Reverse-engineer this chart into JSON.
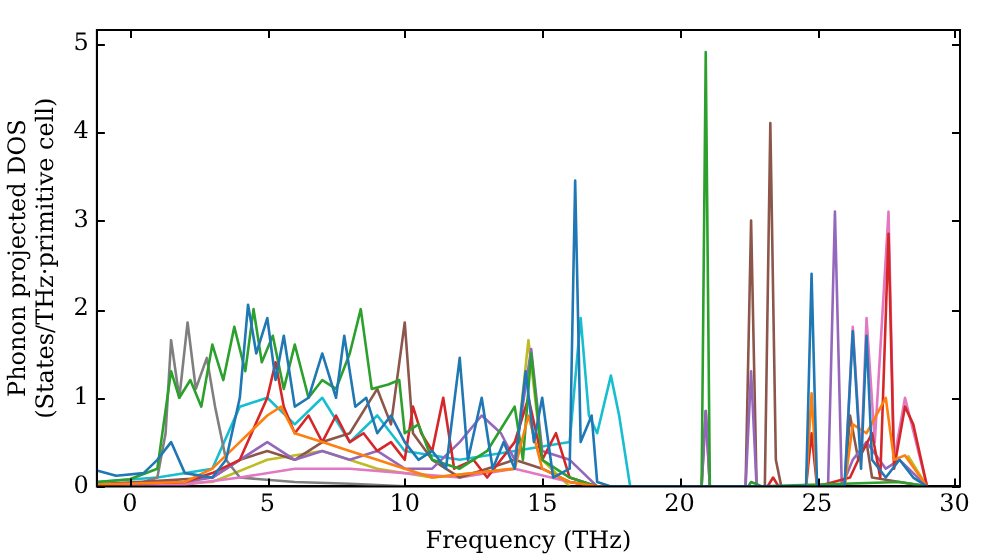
{
  "chart_data": {
    "type": "line",
    "xlabel": "Frequency (THz)",
    "ylabel": "Phonon projected DOS\n(States/THz·primitive cell)",
    "xlim": [
      -1.2,
      30.2
    ],
    "ylim": [
      0,
      5.15
    ],
    "xticks": [
      0,
      5,
      10,
      15,
      20,
      25,
      30
    ],
    "yticks": [
      0,
      1,
      2,
      3,
      4,
      5
    ],
    "grid": false,
    "legend": false,
    "marker": "none",
    "line_style": "solid",
    "series": [
      {
        "color": "#1f77b4",
        "x": [
          -1.2,
          -0.5,
          0.5,
          1,
          1.5,
          2,
          3,
          3.5,
          4,
          4.3,
          4.6,
          5,
          5.3,
          5.6,
          6,
          6.5,
          7,
          7.5,
          7.8,
          8.2,
          8.6,
          9,
          9.5,
          10,
          10.5,
          11,
          11.5,
          12,
          12.3,
          12.8,
          13.2,
          13.6,
          14,
          14.4,
          14.7,
          15,
          15.4,
          16,
          16.2,
          16.4,
          16.8,
          17,
          17.5,
          24.6,
          24.8,
          25,
          26,
          26.3,
          26.6,
          26.8,
          27,
          27.5,
          28,
          28.5,
          29
        ],
        "values": [
          0.18,
          0.12,
          0.15,
          0.3,
          0.5,
          0.15,
          0.1,
          0.3,
          1.0,
          2.05,
          1.5,
          1.9,
          1.2,
          1.7,
          0.9,
          1.0,
          1.5,
          1.0,
          1.7,
          0.9,
          1.0,
          0.6,
          0.8,
          0.5,
          0.3,
          0.4,
          0.2,
          1.45,
          0.3,
          1.0,
          0.2,
          0.5,
          0.2,
          1.3,
          0.5,
          1.0,
          0.1,
          0.2,
          3.45,
          0.5,
          0.8,
          0.05,
          0,
          0,
          2.4,
          0,
          0,
          1.75,
          0.2,
          1.7,
          0.3,
          0.1,
          0.3,
          0.1,
          0
        ]
      },
      {
        "color": "#ff7f0e",
        "x": [
          -1.2,
          2,
          3,
          4,
          5,
          5.5,
          6,
          7,
          8,
          9,
          10,
          11,
          14,
          14.5,
          15,
          16,
          17,
          24.6,
          24.8,
          25,
          26,
          26.3,
          26.8,
          27.5,
          27.8,
          28.2,
          29
        ],
        "values": [
          0.02,
          0.05,
          0.2,
          0.5,
          0.8,
          0.9,
          0.6,
          0.5,
          0.4,
          0.3,
          0.2,
          0.1,
          0.2,
          0.8,
          0.2,
          0.05,
          0,
          0,
          1.05,
          0,
          0,
          0.7,
          0.6,
          1.0,
          0.3,
          0.35,
          0
        ]
      },
      {
        "color": "#2ca02c",
        "x": [
          -1.2,
          0,
          1,
          1.5,
          1.8,
          2.2,
          2.6,
          3,
          3.4,
          3.8,
          4.2,
          4.5,
          4.8,
          5.2,
          5.6,
          6,
          6.5,
          7,
          7.5,
          8,
          8.4,
          8.8,
          9.4,
          9.8,
          10,
          10.5,
          11,
          12,
          13,
          14,
          14.3,
          14.6,
          15,
          16,
          17,
          20.8,
          20.95,
          21.1,
          22.5,
          22.6,
          23,
          28,
          29
        ],
        "values": [
          0.05,
          0.08,
          0.2,
          1.3,
          1.0,
          1.2,
          0.9,
          1.6,
          1.2,
          1.8,
          1.3,
          2.0,
          1.4,
          1.7,
          1.1,
          1.6,
          1.0,
          1.2,
          1.1,
          1.5,
          2.0,
          1.1,
          1.15,
          1.2,
          0.6,
          0.7,
          0.3,
          0.2,
          0.4,
          0.9,
          0.3,
          1.5,
          0.3,
          0.1,
          0,
          0,
          4.9,
          0,
          0,
          0.05,
          0,
          0.05,
          0
        ]
      },
      {
        "color": "#d62728",
        "x": [
          -1.2,
          2,
          3,
          4,
          5,
          5.3,
          5.6,
          6,
          6.5,
          7,
          7.5,
          8,
          8.5,
          9,
          9.5,
          10,
          10.3,
          10.6,
          11,
          11.4,
          11.8,
          12.5,
          13,
          14,
          14.5,
          15,
          15.5,
          16,
          17,
          23.2,
          23.4,
          23.6,
          24.6,
          24.8,
          25,
          26.2,
          26.5,
          27,
          27.3,
          27.6,
          27.8,
          28.2,
          28.5,
          29
        ],
        "values": [
          0.02,
          0.05,
          0.15,
          0.3,
          1.0,
          1.4,
          0.9,
          0.6,
          0.8,
          0.5,
          0.8,
          0.5,
          0.6,
          0.4,
          0.5,
          0.3,
          0.9,
          0.6,
          0.4,
          1.0,
          0.2,
          0.3,
          0.1,
          0.5,
          1.0,
          0.3,
          0.6,
          0.1,
          0,
          0,
          0.1,
          0,
          0,
          0.6,
          0,
          0.1,
          0.3,
          0.6,
          0.1,
          2.85,
          0.2,
          0.9,
          0.7,
          0
        ]
      },
      {
        "color": "#9467bd",
        "x": [
          -1.2,
          2,
          3,
          4,
          5,
          6,
          7,
          8,
          9,
          10,
          11,
          12,
          12.8,
          13.5,
          14,
          14.6,
          15,
          16,
          17,
          20.8,
          20.95,
          21.1,
          22.4,
          22.6,
          22.8,
          25.4,
          25.65,
          25.9,
          26.3,
          26.8,
          27.5,
          28,
          29
        ],
        "values": [
          0.02,
          0.05,
          0.1,
          0.3,
          0.5,
          0.3,
          0.4,
          0.3,
          0.4,
          0.2,
          0.2,
          0.5,
          0.8,
          0.6,
          0.3,
          1.55,
          0.4,
          0.3,
          0,
          0,
          0.85,
          0,
          0,
          1.3,
          0,
          0,
          3.1,
          0,
          0.3,
          0.5,
          0.2,
          0.3,
          0
        ]
      },
      {
        "color": "#8c564b",
        "x": [
          -1.2,
          3,
          4,
          5,
          6,
          7,
          8,
          9,
          9.5,
          10,
          10.3,
          11,
          12,
          13,
          14,
          15,
          16,
          17,
          20.8,
          20.95,
          21.1,
          22.4,
          22.6,
          22.8,
          23.1,
          23.3,
          23.5,
          23.7,
          26,
          26.2,
          26.5,
          26.8,
          27,
          28,
          29
        ],
        "values": [
          0.02,
          0.1,
          0.3,
          0.4,
          0.3,
          0.5,
          0.6,
          1.1,
          0.7,
          1.85,
          0.6,
          0.3,
          0.1,
          0.2,
          0.3,
          0.2,
          0.05,
          0,
          0,
          0.85,
          0,
          0,
          3.0,
          0,
          0,
          4.1,
          0.3,
          0,
          0,
          0.8,
          0.3,
          0.5,
          0.1,
          0.05,
          0
        ]
      },
      {
        "color": "#e377c2",
        "x": [
          -1.2,
          2,
          4,
          6,
          8,
          10,
          12,
          14,
          16,
          17,
          26,
          26.3,
          26.6,
          26.8,
          27.1,
          27.6,
          27.8,
          28.2,
          29
        ],
        "values": [
          0.01,
          0.02,
          0.1,
          0.2,
          0.2,
          0.15,
          0.1,
          0.2,
          0.05,
          0,
          0,
          1.8,
          0.3,
          1.9,
          0.5,
          3.1,
          0.3,
          1.0,
          0
        ]
      },
      {
        "color": "#7f7f7f",
        "x": [
          -1.2,
          0.5,
          1,
          1.3,
          1.5,
          1.8,
          2.1,
          2.4,
          2.8,
          3.1,
          3.5,
          4,
          6,
          8,
          10
        ],
        "values": [
          0.02,
          0.05,
          0.1,
          0.6,
          1.65,
          1.0,
          1.85,
          1.1,
          1.45,
          0.9,
          0.3,
          0.1,
          0.05,
          0.03,
          0
        ]
      },
      {
        "color": "#bcbd22",
        "x": [
          -1.2,
          3,
          5,
          7,
          9,
          11,
          14,
          14.5,
          15,
          16,
          28,
          28.3,
          29
        ],
        "values": [
          0.01,
          0.05,
          0.3,
          0.4,
          0.2,
          0.1,
          0.2,
          1.65,
          0.3,
          0,
          null,
          0.35,
          0
        ]
      },
      {
        "color": "#17becf",
        "x": [
          -1.2,
          1,
          3,
          4,
          5,
          6,
          7,
          8,
          9,
          10,
          12,
          14,
          16,
          16.4,
          16.7,
          17,
          17.5,
          17.8,
          18.2,
          19
        ],
        "values": [
          0.05,
          0.1,
          0.2,
          0.9,
          1.0,
          0.7,
          1.0,
          0.5,
          0.8,
          0.4,
          0.3,
          0.4,
          0.5,
          1.9,
          0.8,
          0.6,
          1.25,
          0.8,
          0,
          0
        ]
      }
    ]
  }
}
